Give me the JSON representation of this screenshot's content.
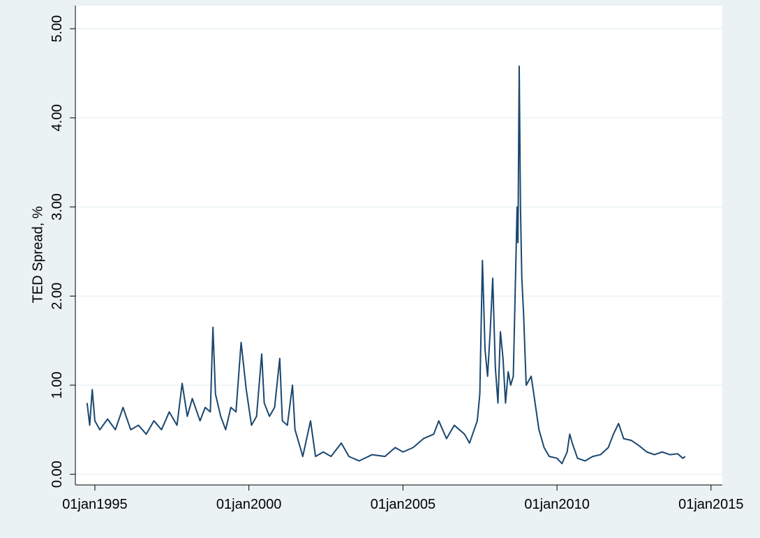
{
  "chart_data": {
    "type": "line",
    "ylabel": "TED Spread, %",
    "color": "#1a476f",
    "grid": true,
    "x": [
      "1994-10-01",
      "1994-11-01",
      "1994-12-01",
      "1995-01-01",
      "1995-03-01",
      "1995-06-01",
      "1995-09-01",
      "1995-12-01",
      "1996-03-01",
      "1996-06-01",
      "1996-09-01",
      "1996-12-01",
      "1997-03-01",
      "1997-06-01",
      "1997-09-01",
      "1997-11-01",
      "1998-01-01",
      "1998-03-01",
      "1998-06-01",
      "1998-08-01",
      "1998-10-01",
      "1998-11-01",
      "1998-12-01",
      "1999-02-01",
      "1999-04-01",
      "1999-06-01",
      "1999-08-01",
      "1999-10-01",
      "1999-12-01",
      "2000-02-01",
      "2000-04-01",
      "2000-06-01",
      "2000-07-01",
      "2000-09-01",
      "2000-11-01",
      "2001-01-01",
      "2001-02-01",
      "2001-04-01",
      "2001-06-01",
      "2001-07-01",
      "2001-09-01",
      "2001-10-01",
      "2002-01-01",
      "2002-03-01",
      "2002-06-01",
      "2002-09-01",
      "2003-01-01",
      "2003-04-01",
      "2003-08-01",
      "2004-01-01",
      "2004-06-01",
      "2004-10-01",
      "2005-01-01",
      "2005-05-01",
      "2005-09-01",
      "2006-01-01",
      "2006-03-01",
      "2006-06-01",
      "2006-09-01",
      "2007-01-01",
      "2007-03-01",
      "2007-06-01",
      "2007-07-01",
      "2007-08-01",
      "2007-09-01",
      "2007-10-01",
      "2007-11-01",
      "2007-12-01",
      "2008-01-01",
      "2008-02-01",
      "2008-03-01",
      "2008-04-01",
      "2008-05-01",
      "2008-06-01",
      "2008-07-01",
      "2008-08-01",
      "2008-09-15",
      "2008-09-25",
      "2008-10-10",
      "2008-10-25",
      "2008-11-10",
      "2008-12-01",
      "2008-12-20",
      "2009-01-01",
      "2009-03-01",
      "2009-04-01",
      "2009-06-01",
      "2009-08-01",
      "2009-10-01",
      "2010-01-01",
      "2010-03-01",
      "2010-05-01",
      "2010-06-01",
      "2010-07-01",
      "2010-09-01",
      "2010-12-01",
      "2011-03-01",
      "2011-06-01",
      "2011-09-01",
      "2011-11-01",
      "2012-01-01",
      "2012-03-01",
      "2012-06-01",
      "2012-09-01",
      "2012-12-01",
      "2013-03-01",
      "2013-06-01",
      "2013-09-01",
      "2013-12-01",
      "2014-02-01",
      "2014-03-01"
    ],
    "values": [
      0.8,
      0.55,
      0.95,
      0.6,
      0.5,
      0.62,
      0.5,
      0.75,
      0.5,
      0.55,
      0.45,
      0.6,
      0.5,
      0.7,
      0.55,
      1.02,
      0.65,
      0.85,
      0.6,
      0.75,
      0.7,
      1.65,
      0.9,
      0.65,
      0.5,
      0.75,
      0.7,
      1.48,
      0.95,
      0.55,
      0.65,
      1.35,
      0.8,
      0.65,
      0.75,
      1.3,
      0.6,
      0.55,
      1.0,
      0.5,
      0.3,
      0.2,
      0.6,
      0.2,
      0.25,
      0.2,
      0.35,
      0.2,
      0.15,
      0.22,
      0.2,
      0.3,
      0.25,
      0.3,
      0.4,
      0.45,
      0.6,
      0.4,
      0.55,
      0.45,
      0.35,
      0.6,
      0.9,
      2.4,
      1.4,
      1.1,
      1.6,
      2.2,
      1.2,
      0.8,
      1.6,
      1.3,
      0.8,
      1.15,
      1.0,
      1.1,
      3.0,
      2.6,
      4.58,
      3.0,
      2.2,
      1.8,
      1.3,
      1.0,
      1.1,
      0.9,
      0.5,
      0.3,
      0.2,
      0.18,
      0.12,
      0.25,
      0.45,
      0.35,
      0.18,
      0.15,
      0.2,
      0.22,
      0.3,
      0.45,
      0.57,
      0.4,
      0.38,
      0.32,
      0.25,
      0.22,
      0.25,
      0.22,
      0.23,
      0.18,
      0.2
    ],
    "xlim": [
      "1994-05-15",
      "2015-05-15"
    ],
    "xticks": [
      {
        "value": "1995-01-01",
        "label": "01jan1995"
      },
      {
        "value": "2000-01-01",
        "label": "01jan2000"
      },
      {
        "value": "2005-01-01",
        "label": "01jan2005"
      },
      {
        "value": "2010-01-01",
        "label": "01jan2010"
      },
      {
        "value": "2015-01-01",
        "label": "01jan2015"
      }
    ],
    "ylim": [
      -0.12,
      5.26
    ],
    "yticks": [
      {
        "value": 0,
        "label": "0.00"
      },
      {
        "value": 1,
        "label": "1.00"
      },
      {
        "value": 2,
        "label": "2.00"
      },
      {
        "value": 3,
        "label": "3.00"
      },
      {
        "value": 4,
        "label": "4.00"
      },
      {
        "value": 5,
        "label": "5.00"
      }
    ]
  }
}
